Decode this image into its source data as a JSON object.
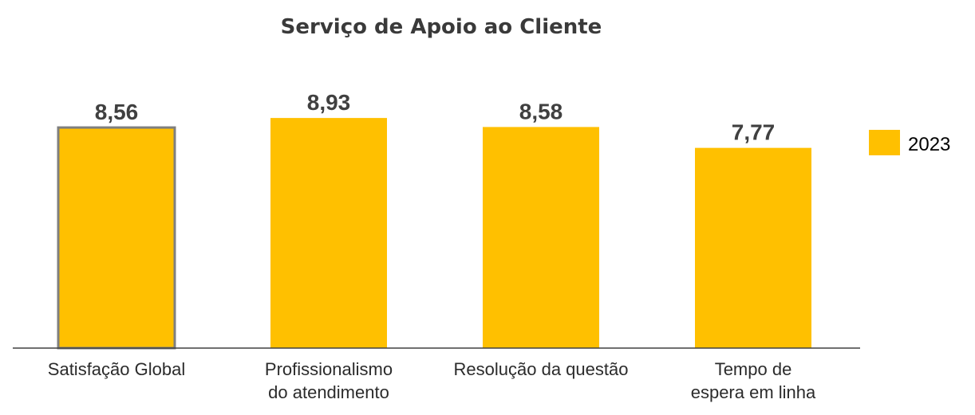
{
  "chart_data": {
    "type": "bar",
    "title": "Serviço de Apoio ao Cliente",
    "categories": [
      [
        "Satisfação Global"
      ],
      [
        "Profissionalismo",
        "do atendimento"
      ],
      [
        "Resolução  da questão"
      ],
      [
        "Tempo de",
        "espera em linha"
      ]
    ],
    "series": [
      {
        "name": "2023",
        "values": [
          8.56,
          8.93,
          8.58,
          7.77
        ],
        "labels": [
          "8,56",
          "8,93",
          "8,58",
          "7,77"
        ]
      }
    ],
    "highlighted_index": 0,
    "ylim": [
      0,
      10
    ],
    "grid": false,
    "legend_position": "right",
    "colors": {
      "bar": "#FFC000",
      "highlight_border": "#7F7F7F",
      "axis": "#404040"
    }
  }
}
